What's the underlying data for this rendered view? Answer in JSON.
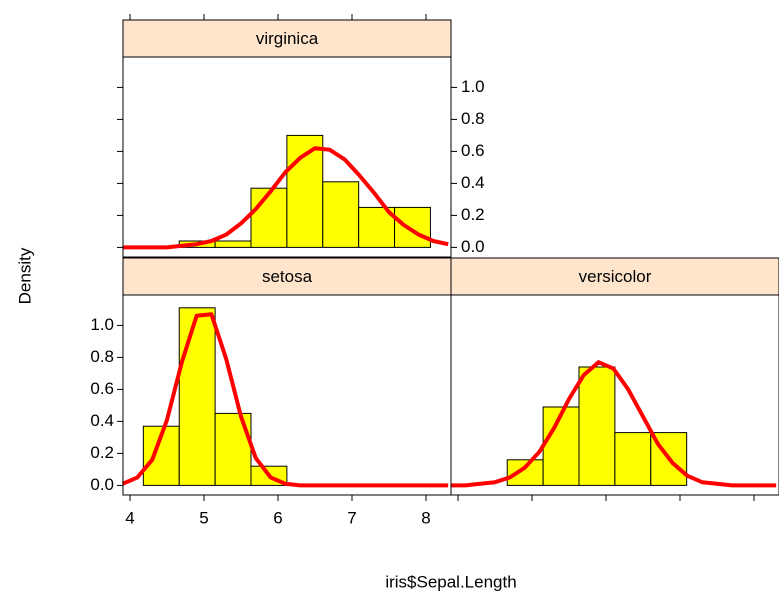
{
  "chart_data": {
    "type": "histogram",
    "xlabel": "iris$Sepal.Length",
    "ylabel": "Density",
    "bins": [
      4.18,
      4.665,
      5.15,
      5.635,
      6.12,
      6.605,
      7.09,
      7.575,
      8.06
    ],
    "xlim": [
      3.905,
      8.338
    ],
    "xticks": [
      4,
      5,
      6,
      7,
      8
    ],
    "ylim": [
      -0.06,
      1.19
    ],
    "yticks": [
      {
        "value": 0,
        "label": "0.0"
      },
      0.2,
      0.4,
      0.6,
      0.8,
      {
        "value": 1,
        "label": "1.0"
      }
    ],
    "bar_color": "#ffff00",
    "line_color": "#ff0000",
    "strip_color": "#ffe5cc",
    "density_x": [
      3.9,
      4.1,
      4.3,
      4.5,
      4.7,
      4.9,
      5.1,
      5.3,
      5.5,
      5.7,
      5.9,
      6.1,
      6.3,
      6.5,
      6.7,
      6.9,
      7.1,
      7.3,
      7.5,
      7.7,
      7.9,
      8.1,
      8.3
    ],
    "panels": [
      {
        "name": "setosa",
        "values": [
          0.37,
          1.11,
          0.45,
          0.12,
          0,
          0,
          0,
          0
        ],
        "density": [
          0.01,
          0.05,
          0.16,
          0.41,
          0.77,
          1.06,
          1.07,
          0.79,
          0.43,
          0.17,
          0.05,
          0.01,
          0,
          0,
          0,
          0,
          0,
          0,
          0,
          0,
          0,
          0,
          0
        ]
      },
      {
        "name": "versicolor",
        "values": [
          0,
          0.16,
          0.49,
          0.74,
          0.33,
          0.33,
          0,
          0
        ],
        "density": [
          0,
          0,
          0.01,
          0.02,
          0.05,
          0.11,
          0.21,
          0.36,
          0.54,
          0.69,
          0.77,
          0.73,
          0.6,
          0.43,
          0.26,
          0.14,
          0.06,
          0.02,
          0.01,
          0,
          0,
          0,
          0
        ]
      },
      {
        "name": "virginica",
        "values": [
          0,
          0.04,
          0.04,
          0.37,
          0.7,
          0.41,
          0.25,
          0.25
        ],
        "density": [
          0,
          0,
          0,
          0,
          0.01,
          0.02,
          0.04,
          0.08,
          0.15,
          0.24,
          0.35,
          0.47,
          0.56,
          0.62,
          0.61,
          0.55,
          0.45,
          0.34,
          0.22,
          0.14,
          0.08,
          0.04,
          0.02
        ]
      }
    ]
  }
}
